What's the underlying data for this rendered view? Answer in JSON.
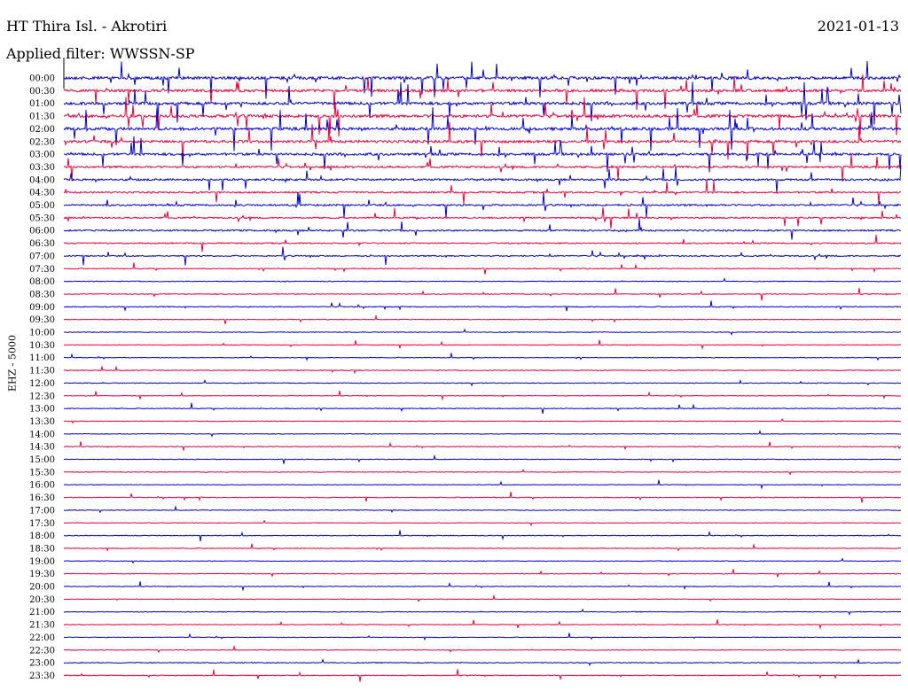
{
  "header": {
    "station": "HT Thira Isl. - Akrotiri",
    "date": "2021-01-13",
    "filter": "Applied filter: WWSSN-SP",
    "channel": "EHZ - 5000"
  },
  "chart_data": {
    "type": "line",
    "title": "HT Thira Isl. - Akrotiri",
    "ylabel": "EHZ - 5000",
    "series_colors": [
      "#0000cc",
      "#e8003a"
    ],
    "rows": [
      {
        "label": "00:00",
        "activity": 1.0
      },
      {
        "label": "00:30",
        "activity": 0.9
      },
      {
        "label": "01:00",
        "activity": 1.0
      },
      {
        "label": "01:30",
        "activity": 1.0
      },
      {
        "label": "02:00",
        "activity": 1.0
      },
      {
        "label": "02:30",
        "activity": 0.9
      },
      {
        "label": "03:00",
        "activity": 0.8
      },
      {
        "label": "03:30",
        "activity": 0.6
      },
      {
        "label": "04:00",
        "activity": 0.6
      },
      {
        "label": "04:30",
        "activity": 0.5
      },
      {
        "label": "05:00",
        "activity": 0.5
      },
      {
        "label": "05:30",
        "activity": 0.4
      },
      {
        "label": "06:00",
        "activity": 0.45
      },
      {
        "label": "06:30",
        "activity": 0.3
      },
      {
        "label": "07:00",
        "activity": 0.3
      },
      {
        "label": "07:30",
        "activity": 0.15
      },
      {
        "label": "08:00",
        "activity": 0.1
      },
      {
        "label": "08:30",
        "activity": 0.12
      },
      {
        "label": "09:00",
        "activity": 0.15
      },
      {
        "label": "09:30",
        "activity": 0.08
      },
      {
        "label": "10:00",
        "activity": 0.1
      },
      {
        "label": "10:30",
        "activity": 0.05
      },
      {
        "label": "11:00",
        "activity": 0.05
      },
      {
        "label": "11:30",
        "activity": 0.12
      },
      {
        "label": "12:00",
        "activity": 0.1
      },
      {
        "label": "12:30",
        "activity": 0.05
      },
      {
        "label": "13:00",
        "activity": 0.12
      },
      {
        "label": "13:30",
        "activity": 0.05
      },
      {
        "label": "14:00",
        "activity": 0.04
      },
      {
        "label": "14:30",
        "activity": 0.06
      },
      {
        "label": "15:00",
        "activity": 0.08
      },
      {
        "label": "15:30",
        "activity": 0.06
      },
      {
        "label": "16:00",
        "activity": 0.04
      },
      {
        "label": "16:30",
        "activity": 0.12
      },
      {
        "label": "17:00",
        "activity": 0.06
      },
      {
        "label": "17:30",
        "activity": 0.04
      },
      {
        "label": "18:00",
        "activity": 0.08
      },
      {
        "label": "18:30",
        "activity": 0.06
      },
      {
        "label": "19:00",
        "activity": 0.05
      },
      {
        "label": "19:30",
        "activity": 0.06
      },
      {
        "label": "20:00",
        "activity": 0.05
      },
      {
        "label": "20:30",
        "activity": 0.04
      },
      {
        "label": "21:00",
        "activity": 0.07
      },
      {
        "label": "21:30",
        "activity": 0.06
      },
      {
        "label": "22:00",
        "activity": 0.04
      },
      {
        "label": "22:30",
        "activity": 0.06
      },
      {
        "label": "23:00",
        "activity": 0.15
      },
      {
        "label": "23:30",
        "activity": 0.12
      }
    ]
  }
}
